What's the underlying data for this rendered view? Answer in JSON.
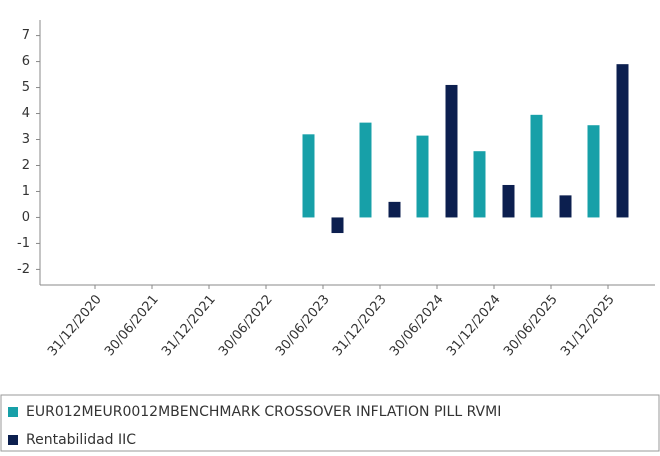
{
  "chart_data": {
    "type": "bar",
    "categories": [
      "31/12/2020",
      "30/06/2021",
      "31/12/2021",
      "30/06/2022",
      "30/06/2023",
      "31/12/2023",
      "30/06/2024",
      "31/12/2024",
      "30/06/2025",
      "31/12/2025"
    ],
    "series": [
      {
        "name": "EUR012MEUR0012MBENCHMARK CROSSOVER INFLATION PILL RVMI",
        "color": "#17a0a8",
        "values": [
          null,
          null,
          null,
          null,
          3.2,
          3.65,
          3.15,
          2.55,
          3.95,
          3.55
        ]
      },
      {
        "name": "Rentabilidad IIC",
        "color": "#0c1f4f",
        "values": [
          null,
          null,
          null,
          null,
          -0.6,
          0.6,
          5.1,
          1.25,
          0.85,
          5.9
        ]
      }
    ],
    "ylim": [
      -2.6,
      7.6
    ],
    "yticks": [
      -2,
      -1,
      0,
      1,
      2,
      3,
      4,
      5,
      6,
      7
    ],
    "legend": "bottom"
  }
}
